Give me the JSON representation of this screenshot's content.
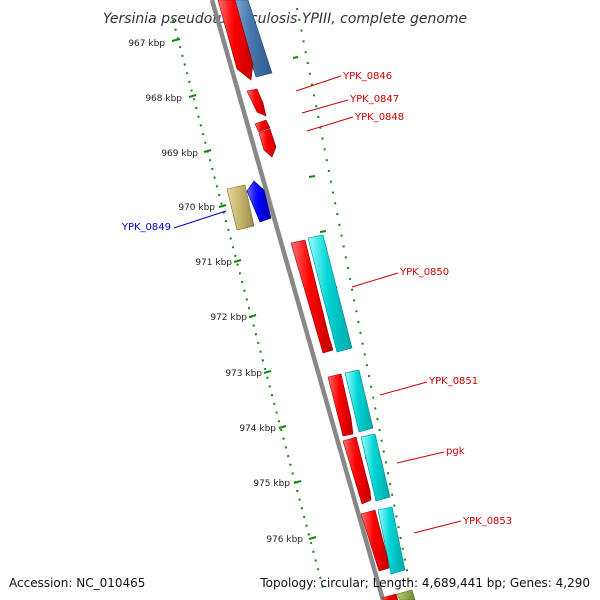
{
  "title": "Yersinia pseudotuberculosis YPIII, complete genome",
  "footer": {
    "accession": "Accession: NC_010465",
    "summary": "Topology: circular; Length: 4,689,441 bp; Genes: 4,290"
  },
  "ticks": [
    "967 kbp",
    "968 kbp",
    "969 kbp",
    "970 kbp",
    "971 kbp",
    "972 kbp",
    "973 kbp",
    "974 kbp",
    "975 kbp",
    "976 kbp"
  ],
  "labels": [
    {
      "text": "YPK_0846",
      "color": "#cc0000"
    },
    {
      "text": "YPK_0847",
      "color": "#cc0000"
    },
    {
      "text": "YPK_0848",
      "color": "#cc0000"
    },
    {
      "text": "YPK_0849",
      "color": "#0000cc"
    },
    {
      "text": "YPK_0850",
      "color": "#cc0000"
    },
    {
      "text": "YPK_0851",
      "color": "#cc0000"
    },
    {
      "text": "pgk",
      "color": "#cc0000"
    },
    {
      "text": "YPK_0853",
      "color": "#cc0000"
    }
  ],
  "colors": {
    "cds_forward": "#ff0000",
    "cds_reverse": "#0000ff",
    "cog": "#00cccc",
    "cog_blue": "#4a7ab0",
    "cog_olive": "#c8b870",
    "backbone": "#888888",
    "tick": "#118811"
  }
}
